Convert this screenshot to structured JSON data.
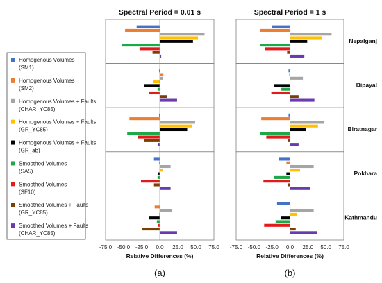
{
  "chart_data": {
    "type": "bar",
    "orientation": "horizontal",
    "locations": [
      "Nepalganj",
      "Dipayal",
      "Biratnagar",
      "Pokhara",
      "Kathmandu"
    ],
    "xlabel": "Relative Differences (%)",
    "xlim": [
      -75,
      75
    ],
    "xticks": [
      "-75.0",
      "-50.0",
      "-25.0",
      "0.0",
      "25.0",
      "50.0",
      "75.0"
    ],
    "series": [
      {
        "name": "Homogenous Volumes\n(SM1)",
        "color": "#4472C4"
      },
      {
        "name": "Homogenous Volumes\n(SM2)",
        "color": "#ED7D31"
      },
      {
        "name": "Homogenous Volumes + Faults\n(CHAR_YC85)",
        "color": "#A5A5A5"
      },
      {
        "name": "Homogenous Volumes + Faults\n(GR_YC85)",
        "color": "#FFC000"
      },
      {
        "name": "Homogenous Volumes + Faults\n(GR_ab)",
        "color": "#000000"
      },
      {
        "name": "Smoothed Volumes\n(SA5)",
        "color": "#1EA84A"
      },
      {
        "name": "Smoothed Volumes\n(SF10)",
        "color": "#E31A1C"
      },
      {
        "name": "Smoothed Volumes + Faults\n(GR_YC85)",
        "color": "#7B3F00"
      },
      {
        "name": "Smoothed Volumes + Faults\n(CHAR_YC85)",
        "color": "#6A3AB1"
      }
    ],
    "panels": [
      {
        "title": "Spectral Period = 0.01 s",
        "label": "(a)",
        "values": {
          "Nepalganj": [
            -32,
            -48,
            62,
            53,
            46,
            -52,
            -28,
            -10,
            2
          ],
          "Dipayal": [
            -1,
            5,
            4,
            -9,
            -22,
            -3,
            -15,
            10,
            24
          ],
          "Biratnagar": [
            -1,
            -42,
            49,
            45,
            38,
            -45,
            -30,
            -22,
            -2
          ],
          "Pokhara": [
            -8,
            -1,
            15,
            4,
            -2,
            -3,
            -26,
            -8,
            15
          ],
          "Kathmandu": [
            0,
            -7,
            17,
            -1,
            -15,
            -4,
            -2,
            -25,
            24
          ]
        }
      },
      {
        "title": "Spectral Period = 1 s",
        "label": "(b)",
        "values": {
          "Nepalganj": [
            -25,
            -42,
            58,
            45,
            24,
            -42,
            -35,
            -4,
            20
          ],
          "Dipayal": [
            -2,
            -1,
            18,
            0,
            -22,
            -12,
            -26,
            12,
            34
          ],
          "Biratnagar": [
            -2,
            -40,
            48,
            39,
            22,
            -42,
            -33,
            -3,
            12
          ],
          "Pokhara": [
            -15,
            -5,
            33,
            14,
            -5,
            -22,
            -37,
            -3,
            28
          ],
          "Kathmandu": [
            -18,
            0,
            33,
            10,
            -13,
            -20,
            -36,
            8,
            38
          ]
        }
      }
    ]
  }
}
